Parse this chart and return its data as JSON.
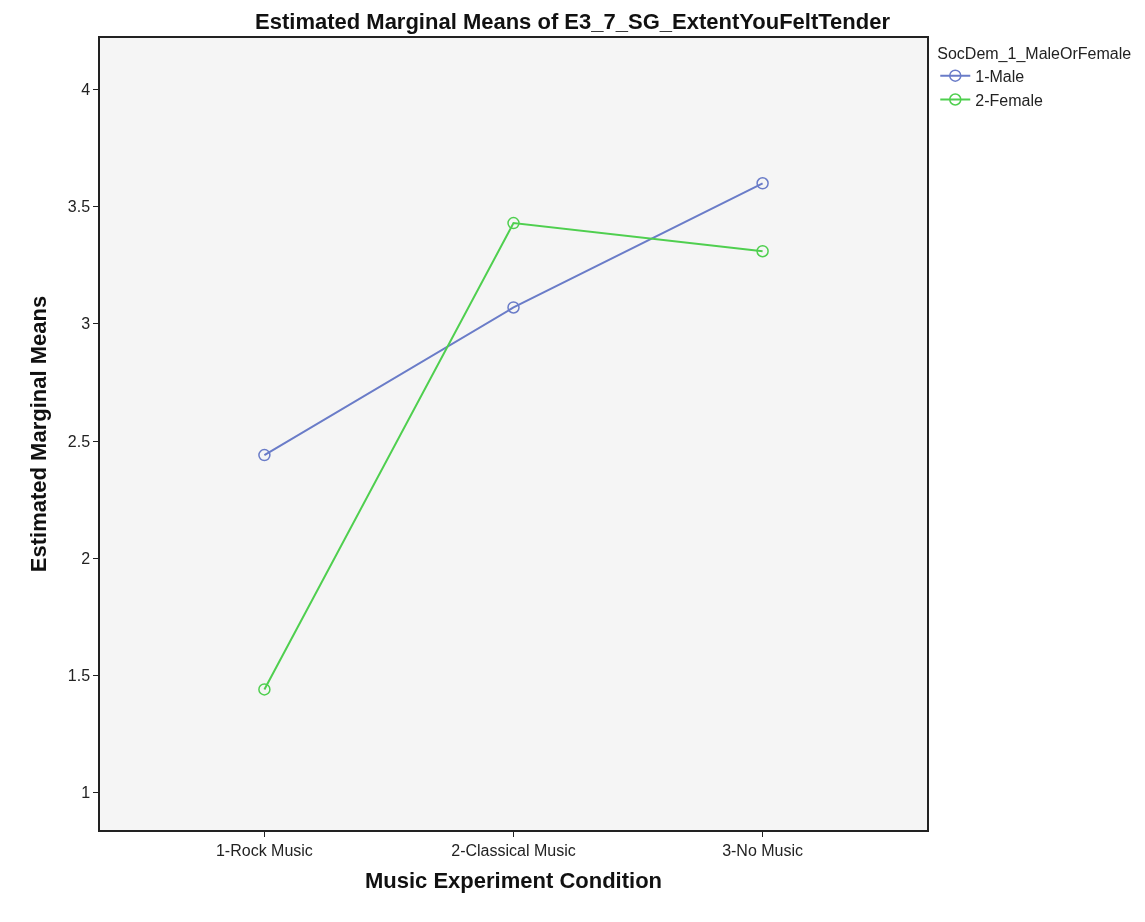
{
  "chart_data": {
    "type": "line",
    "title": "Estimated Marginal Means of E3_7_SG_ExtentYouFeltTender",
    "xlabel": "Music Experiment Condition",
    "ylabel": "Estimated Marginal Means",
    "legend_title": "SocDem_1_MaleOrFemale",
    "categories": [
      "1-Rock Music",
      "2-Classical Music",
      "3-No Music"
    ],
    "series": [
      {
        "name": "1-Male",
        "color": "#6a7cc8",
        "values": [
          2.44,
          3.07,
          3.6
        ]
      },
      {
        "name": "2-Female",
        "color": "#4fcf4f",
        "values": [
          1.44,
          3.43,
          3.31
        ]
      }
    ],
    "ylim": [
      0.84,
      4.22
    ],
    "yticks": [
      1,
      1.5,
      2,
      2.5,
      3,
      3.5,
      4
    ],
    "grid": false,
    "legend": "top right",
    "marker": "circle",
    "line_style": "solid"
  }
}
